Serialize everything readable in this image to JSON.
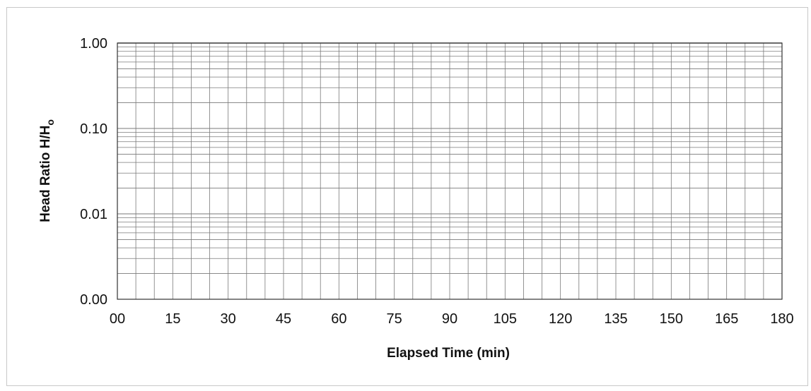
{
  "chart_data": {
    "type": "line",
    "title": "",
    "xlabel": "Elapsed Time (min)",
    "ylabel": {
      "main": "Head Ratio H/H",
      "subscript": "o"
    },
    "xlim": [
      0,
      180
    ],
    "ylim": [
      0.001,
      1
    ],
    "yscale": "log",
    "x_ticks": [
      0,
      15,
      30,
      45,
      60,
      75,
      90,
      105,
      120,
      135,
      150,
      165,
      180
    ],
    "x_tick_labels": [
      "00",
      "15",
      "30",
      "45",
      "60",
      "75",
      "90",
      "105",
      "120",
      "135",
      "150",
      "165",
      "180"
    ],
    "y_ticks": [
      0.001,
      0.01,
      0.1,
      1
    ],
    "y_tick_labels": [
      "0.00",
      "0.01",
      "0.10",
      "1.00"
    ],
    "x_minor_step": 5,
    "grid": true,
    "series": []
  },
  "colors": {
    "grid": "#7a7a7a",
    "axis": "#333333",
    "text": "#111111",
    "frame": "#c8c8c8"
  }
}
